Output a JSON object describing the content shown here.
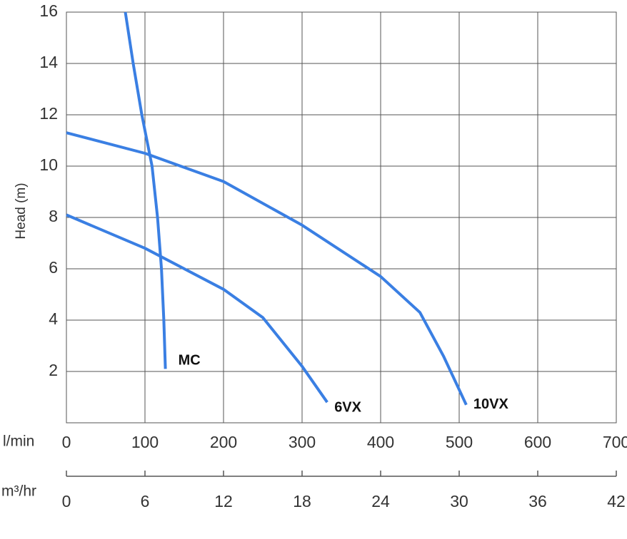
{
  "chart_data": {
    "type": "line",
    "ylabel": "Head (m)",
    "xlabel": "l/min",
    "x2label": "m³/hr",
    "xlim": [
      0,
      700
    ],
    "xticks": [
      0,
      100,
      200,
      300,
      400,
      500,
      600,
      700
    ],
    "x2lim": [
      0,
      42
    ],
    "x2ticks": [
      0,
      6,
      12,
      18,
      24,
      30,
      36,
      42
    ],
    "ylim": [
      0,
      16
    ],
    "yticks": [
      2,
      4,
      6,
      8,
      10,
      12,
      14,
      16
    ],
    "grid": true,
    "series": [
      {
        "name": "MC",
        "color": "#3a7fe3",
        "x": [
          75,
          85,
          96,
          109,
          116,
          121,
          124,
          126
        ],
        "values": [
          16,
          14,
          12,
          10,
          8,
          6,
          4,
          2.1
        ]
      },
      {
        "name": "6VX",
        "color": "#3a7fe3",
        "x": [
          0,
          100,
          200,
          250,
          300,
          332
        ],
        "values": [
          8.1,
          6.8,
          5.2,
          4.1,
          2.2,
          0.8
        ]
      },
      {
        "name": "10VX",
        "color": "#3a7fe3",
        "x": [
          0,
          100,
          200,
          300,
          400,
          450,
          480,
          509
        ],
        "values": [
          11.3,
          10.5,
          9.4,
          7.7,
          5.7,
          4.3,
          2.6,
          0.7
        ]
      }
    ]
  }
}
